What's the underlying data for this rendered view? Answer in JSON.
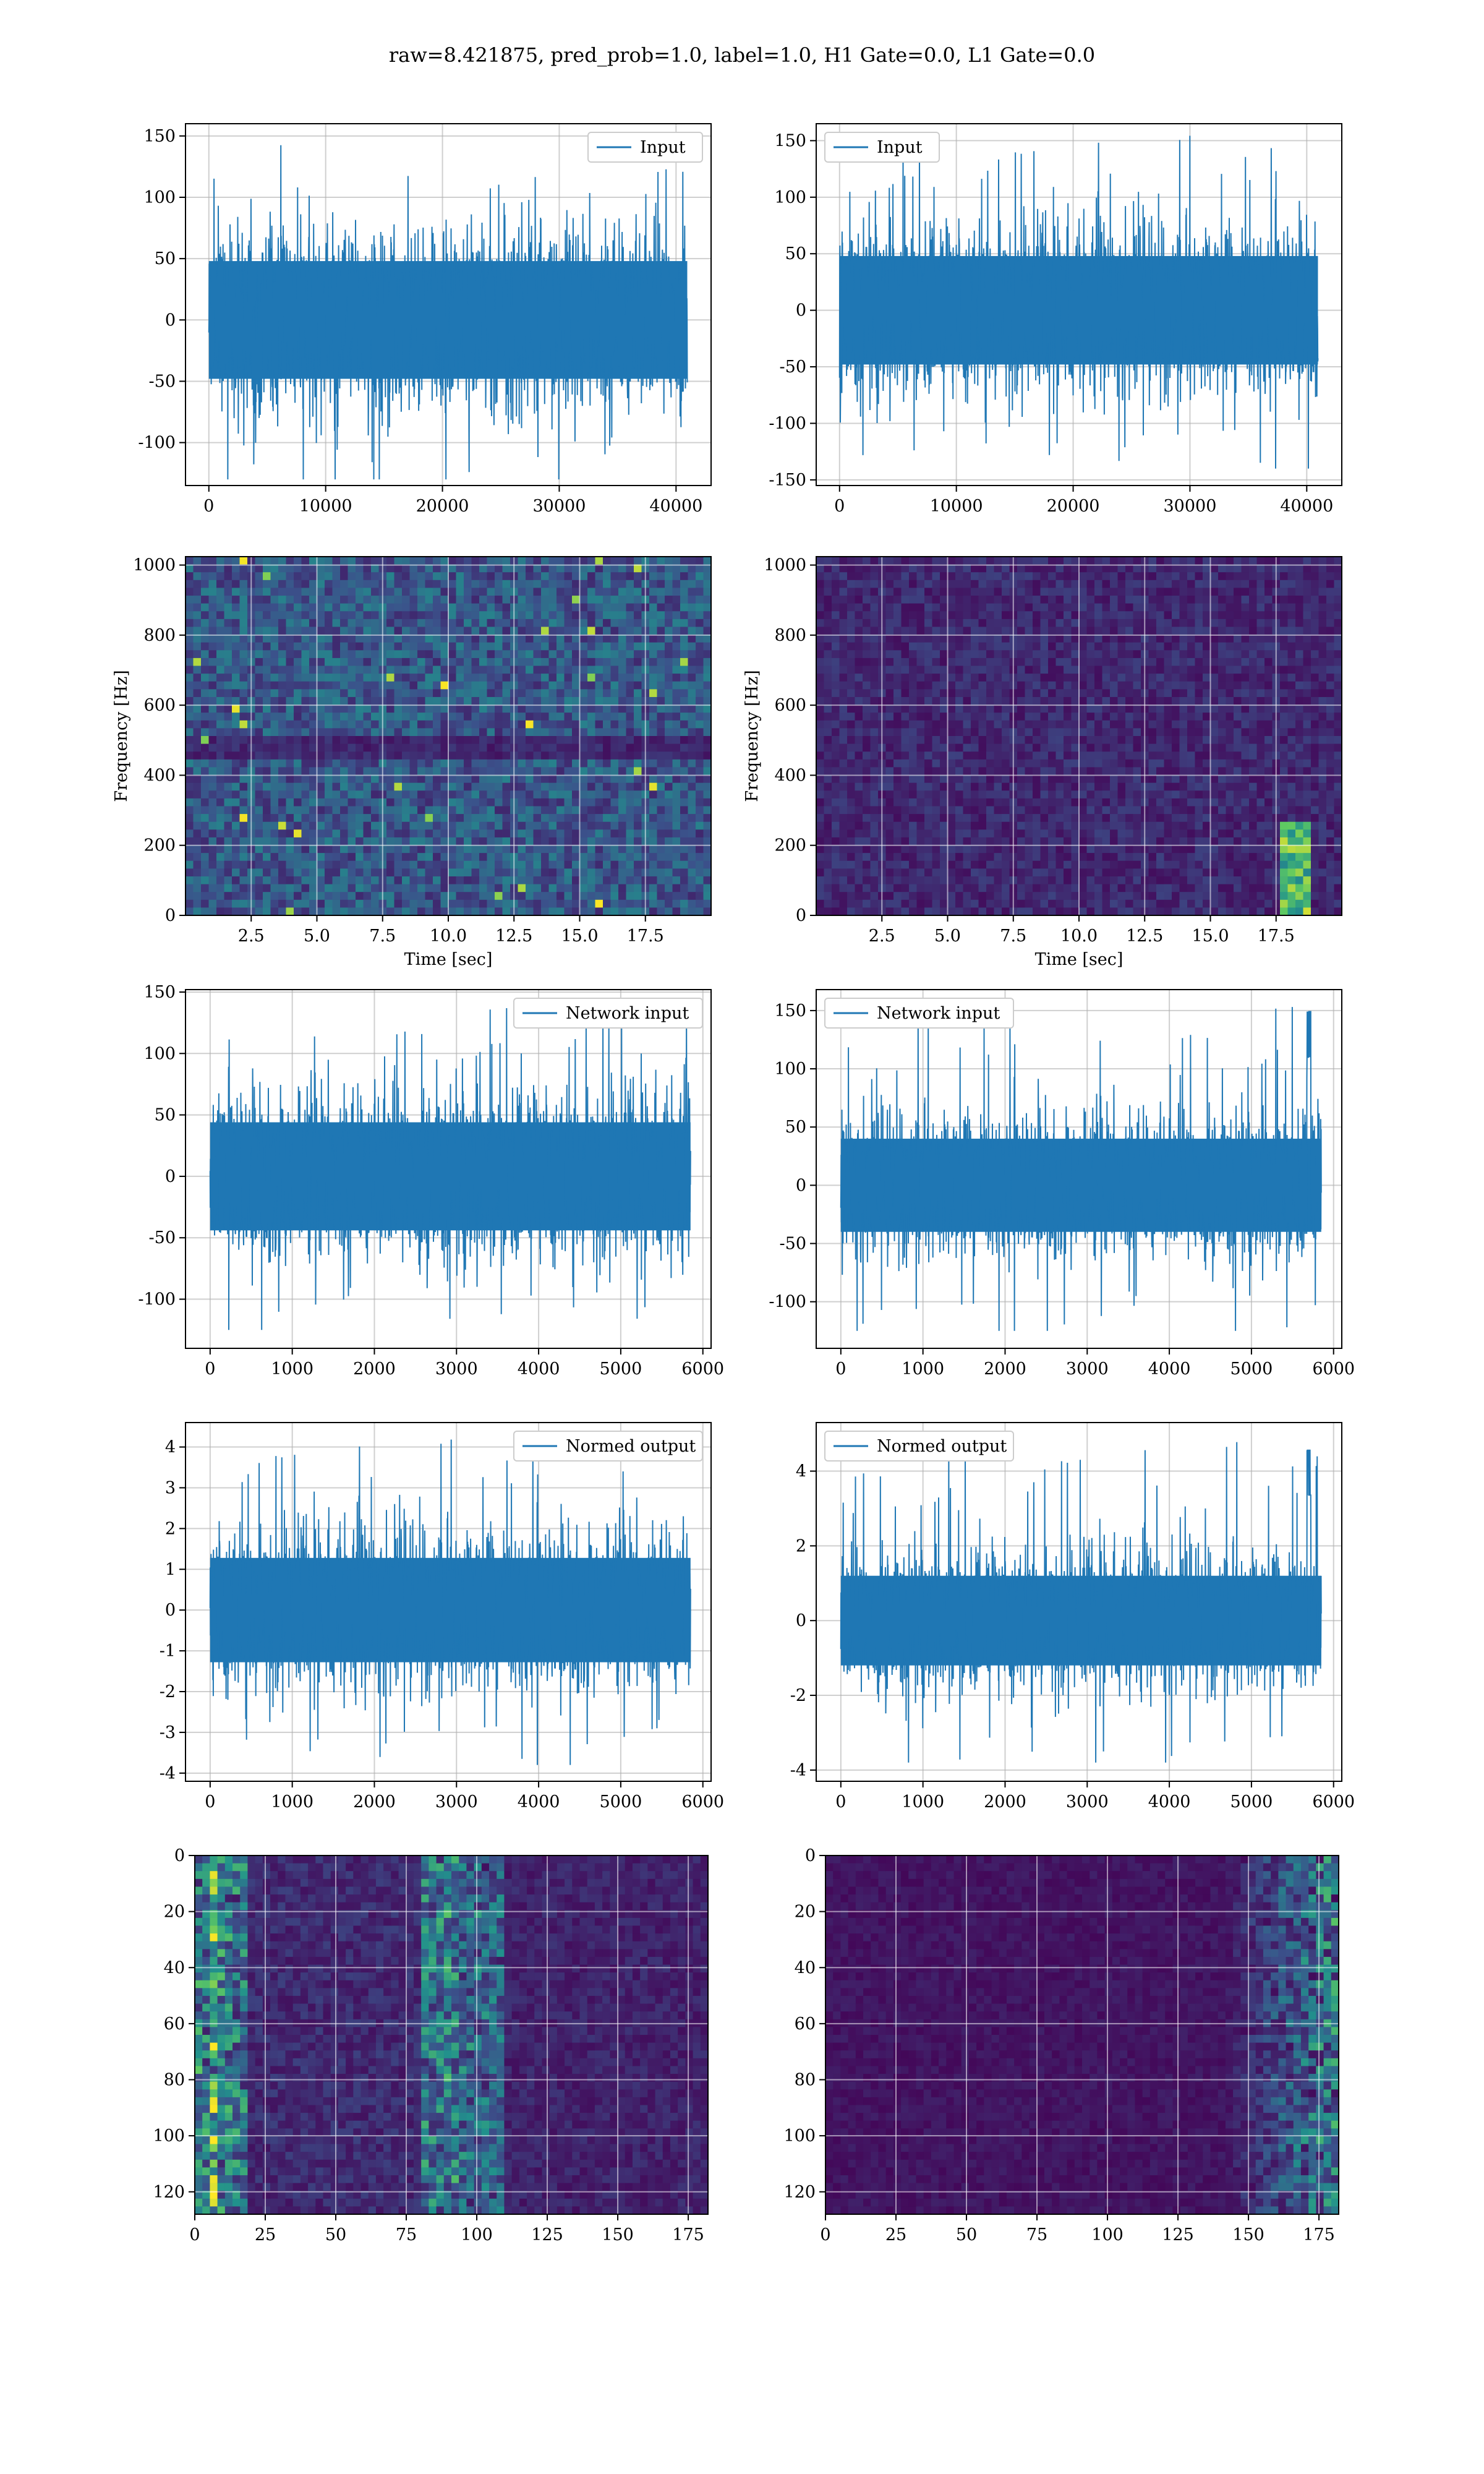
{
  "suptitle": "raw=8.421875, pred_prob=1.0, label=1.0, H1 Gate=0.0, L1 Gate=0.0",
  "colors": {
    "line": "#1f77b4",
    "grid": "#b0b0b0",
    "viridis_low": "#440154",
    "viridis_mid": "#21918c",
    "viridis_high": "#fde725"
  },
  "chart_data": [
    {
      "id": "h1-input",
      "type": "line",
      "legend": "Input",
      "legend_loc": "upper right",
      "xlim": [
        -2000,
        43000
      ],
      "ylim": [
        -135,
        160
      ],
      "xticks": [
        0,
        10000,
        20000,
        30000,
        40000
      ],
      "yticks": [
        -100,
        -50,
        0,
        50,
        100,
        150
      ],
      "series": [
        {
          "x_range": [
            0,
            40960
          ],
          "y_min": -130,
          "y_max": 145,
          "typical_amp": 60
        }
      ]
    },
    {
      "id": "l1-input",
      "type": "line",
      "legend": "Input",
      "legend_loc": "upper left",
      "xlim": [
        -2000,
        43000
      ],
      "ylim": [
        -155,
        165
      ],
      "xticks": [
        0,
        10000,
        20000,
        30000,
        40000
      ],
      "yticks": [
        -150,
        -100,
        -50,
        0,
        50,
        100,
        150
      ],
      "series": [
        {
          "x_range": [
            0,
            40960
          ],
          "y_min": -140,
          "y_max": 155,
          "typical_amp": 60
        }
      ]
    },
    {
      "id": "h1-spectrogram",
      "type": "heatmap",
      "xlabel": "Time [sec]",
      "ylabel": "Frequency [Hz]",
      "xlim": [
        0,
        20
      ],
      "ylim": [
        0,
        1024
      ],
      "colormap": "viridis",
      "xticks": [
        2.5,
        5.0,
        7.5,
        10.0,
        12.5,
        15.0,
        17.5
      ],
      "yticks": [
        0,
        200,
        400,
        600,
        800,
        1000
      ],
      "xtick_labels": [
        "2.5",
        "5.0",
        "7.5",
        "10.0",
        "12.5",
        "15.0",
        "17.5"
      ],
      "features": {
        "uniform_noise": true,
        "band_dip_hz": 490
      }
    },
    {
      "id": "l1-spectrogram",
      "type": "heatmap",
      "xlabel": "Time [sec]",
      "ylabel": "Frequency [Hz]",
      "xlim": [
        0,
        20
      ],
      "ylim": [
        0,
        1024
      ],
      "colormap": "viridis",
      "xticks": [
        2.5,
        5.0,
        7.5,
        10.0,
        12.5,
        15.0,
        17.5
      ],
      "yticks": [
        0,
        200,
        400,
        600,
        800,
        1000
      ],
      "xtick_labels": [
        "2.5",
        "5.0",
        "7.5",
        "10.0",
        "12.5",
        "15.0",
        "17.5"
      ],
      "features": {
        "chirp_time_sec": 18.2,
        "chirp_freq_range_hz": [
          30,
          280
        ]
      }
    },
    {
      "id": "h1-network-input",
      "type": "line",
      "legend": "Network input",
      "legend_loc": "upper right",
      "xlim": [
        -300,
        6100
      ],
      "ylim": [
        -140,
        152
      ],
      "xticks": [
        0,
        1000,
        2000,
        3000,
        4000,
        5000,
        6000
      ],
      "yticks": [
        -100,
        -50,
        0,
        50,
        100,
        150
      ],
      "series": [
        {
          "x_range": [
            0,
            5850
          ],
          "y_min": -125,
          "y_max": 140,
          "typical_amp": 55
        }
      ]
    },
    {
      "id": "l1-network-input",
      "type": "line",
      "legend": "Network input",
      "legend_loc": "upper left",
      "xlim": [
        -300,
        6100
      ],
      "ylim": [
        -140,
        168
      ],
      "xticks": [
        0,
        1000,
        2000,
        3000,
        4000,
        5000,
        6000
      ],
      "yticks": [
        -100,
        -50,
        0,
        50,
        100,
        150
      ],
      "series": [
        {
          "x_range": [
            0,
            5850
          ],
          "y_min": -125,
          "y_max": 157,
          "typical_amp": 50,
          "peak_x": 5700
        }
      ]
    },
    {
      "id": "h1-normed-output",
      "type": "line",
      "legend": "Normed output",
      "legend_loc": "upper right",
      "xlim": [
        -300,
        6100
      ],
      "ylim": [
        -4.2,
        4.6
      ],
      "xticks": [
        0,
        1000,
        2000,
        3000,
        4000,
        5000,
        6000
      ],
      "yticks": [
        -4,
        -3,
        -2,
        -1,
        0,
        1,
        2,
        3,
        4
      ],
      "series": [
        {
          "x_range": [
            0,
            5850
          ],
          "y_min": -3.8,
          "y_max": 4.2,
          "typical_amp": 1.6
        }
      ]
    },
    {
      "id": "l1-normed-output",
      "type": "line",
      "legend": "Normed output",
      "legend_loc": "upper left",
      "xlim": [
        -300,
        6100
      ],
      "ylim": [
        -4.3,
        5.3
      ],
      "xticks": [
        0,
        1000,
        2000,
        3000,
        4000,
        5000,
        6000
      ],
      "yticks": [
        -4,
        -2,
        0,
        2,
        4
      ],
      "series": [
        {
          "x_range": [
            0,
            5850
          ],
          "y_min": -3.8,
          "y_max": 4.8,
          "typical_amp": 1.5,
          "peak_x": 5700
        }
      ]
    },
    {
      "id": "h1-feature-map",
      "type": "heatmap",
      "colormap": "viridis",
      "xlim": [
        0,
        182
      ],
      "ylim": [
        0,
        128
      ],
      "y_inverted": true,
      "xticks": [
        0,
        25,
        50,
        75,
        100,
        125,
        150,
        175
      ],
      "yticks": [
        0,
        20,
        40,
        60,
        80,
        100,
        120
      ],
      "features": {
        "bright_columns": [
          0,
          25,
          85,
          100
        ]
      }
    },
    {
      "id": "l1-feature-map",
      "type": "heatmap",
      "colormap": "viridis",
      "xlim": [
        0,
        182
      ],
      "ylim": [
        0,
        128
      ],
      "y_inverted": true,
      "xticks": [
        0,
        25,
        50,
        75,
        100,
        125,
        150,
        175
      ],
      "yticks": [
        0,
        20,
        40,
        60,
        80,
        100,
        120
      ],
      "features": {
        "bright_columns": [
          140,
          182
        ]
      }
    }
  ]
}
